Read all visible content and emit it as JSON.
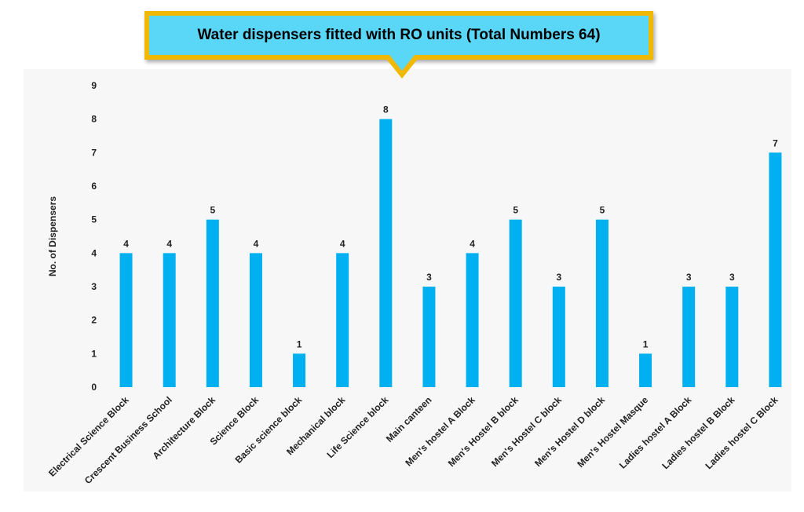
{
  "chart_data": {
    "type": "bar",
    "title": "Water dispensers fitted with RO units (Total Numbers 64)",
    "xlabel": "",
    "ylabel": "No. of Dispensers",
    "ylim": [
      0,
      9
    ],
    "yticks": [
      0,
      1,
      2,
      3,
      4,
      5,
      6,
      7,
      8,
      9
    ],
    "grid": false,
    "categories": [
      "Electrical Science Block",
      "Crescent Business School",
      "Architecture Block",
      "Science Block",
      "Basic science block",
      "Mechanical block",
      "Life Science block",
      "Main canteen",
      "Men's hostel A Block",
      "Men's Hostel B block",
      "Men's Hostel C block",
      "Men's Hostel D block",
      "Men's Hostel Masque",
      "Ladies hostel A Block",
      "Ladies hostel B Block",
      "Ladies hostel C Block"
    ],
    "values": [
      4,
      4,
      5,
      4,
      1,
      4,
      8,
      3,
      4,
      5,
      3,
      5,
      1,
      3,
      3,
      7
    ],
    "bar_color": "#00b0f0"
  },
  "callout": {
    "fill": "#5ad6f7",
    "border": "#f0b800"
  }
}
